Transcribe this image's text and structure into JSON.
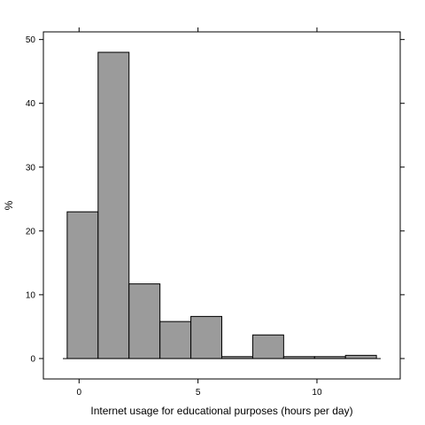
{
  "chart_data": {
    "type": "bar",
    "subtype": "histogram",
    "xlabel": "Internet usage for educational purposes (hours per day)",
    "ylabel": "%",
    "xlim": [
      -1.5,
      13.5
    ],
    "ylim": [
      -3.2,
      51.2
    ],
    "x_ticks": [
      0,
      5,
      10
    ],
    "y_ticks": [
      0,
      10,
      20,
      30,
      40,
      50
    ],
    "bin_edges": [
      -0.5,
      0.8,
      2.1,
      3.4,
      4.7,
      6.0,
      7.3,
      8.6,
      9.9,
      11.2,
      12.5
    ],
    "values": [
      23.0,
      48.0,
      11.7,
      5.8,
      6.6,
      0.3,
      3.7,
      0.3,
      0.3,
      0.5
    ],
    "grid": false,
    "colors": {
      "bar_fill": "#9b9b9b",
      "bar_stroke": "#000000",
      "frame": "#000000",
      "background": "#ffffff"
    }
  }
}
